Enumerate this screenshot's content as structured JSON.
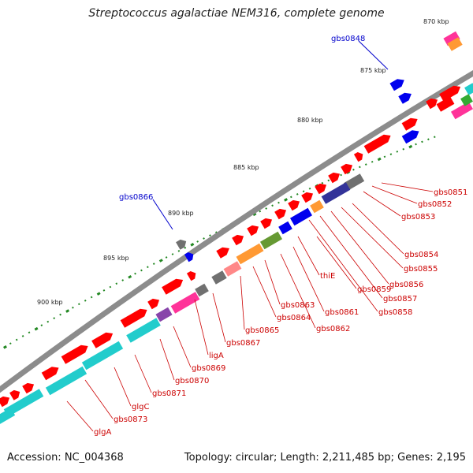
{
  "title": "Streptococcus agalactiae NEM316, complete genome",
  "footer": {
    "accession": "Accession: NC_004368",
    "summary": "Topology: circular; Length: 2,211,485 bp; Genes: 2,195"
  },
  "colors": {
    "backbone": "#8c8c8c",
    "cds": "#ff0000",
    "blue_gene": "#0000ee",
    "blue_label": "#0000cc",
    "red_label": "#cc0000",
    "tick": "#228822",
    "cyan": "#22cccc",
    "gray": "#707070",
    "pink": "#ff3399",
    "orange": "#ff9933",
    "olive": "#669933",
    "navy": "#333399",
    "salmon": "#ff8888",
    "purple": "#8844aa",
    "green": "#33aa33"
  },
  "scale_labels": [
    "870 kbp",
    "875 kbp",
    "880 kbp",
    "885 kbp",
    "890 kbp",
    "895 kbp",
    "900 kbp"
  ],
  "outer_gene_labels": [
    "gbs0848",
    "gbs0866"
  ],
  "inner_gene_labels": [
    "gbs0851",
    "gbs0852",
    "gbs0853",
    "gbs0854",
    "gbs0855",
    "gbs0856",
    "gbs0857",
    "gbs0858",
    "thiE",
    "gbs0859",
    "gbs0861",
    "gbs0862",
    "gbs0863",
    "gbs0864",
    "gbs0865",
    "gbs0867",
    "ligA",
    "gbs0869",
    "gbs0870",
    "gbs0871",
    "glgC",
    "gbs0873",
    "glgA"
  ]
}
